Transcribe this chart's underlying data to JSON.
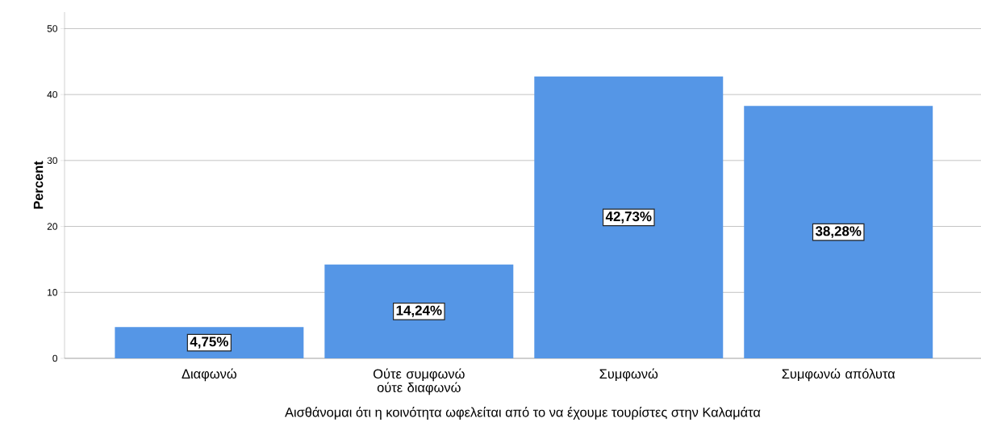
{
  "chart_data": {
    "type": "bar",
    "categories": [
      "Διαφωνώ",
      "Ούτε συμφωνώ ούτε διαφωνώ",
      "Συμφωνώ",
      "Συμφωνώ απόλυτα"
    ],
    "values": [
      4.75,
      14.24,
      42.73,
      38.28
    ],
    "value_labels": [
      "4,75%",
      "14,24%",
      "42,73%",
      "38,28%"
    ],
    "color": "#5596e6",
    "xlabel": "Αισθάνομαι ότι η κοινότητα ωφελείται από το να έχουμε τουρίστες στην Καλαμάτα",
    "ylabel": "Percent",
    "ylim": [
      0,
      52.5
    ],
    "yticks": [
      0,
      10,
      20,
      30,
      40,
      50
    ],
    "grid": "y"
  }
}
